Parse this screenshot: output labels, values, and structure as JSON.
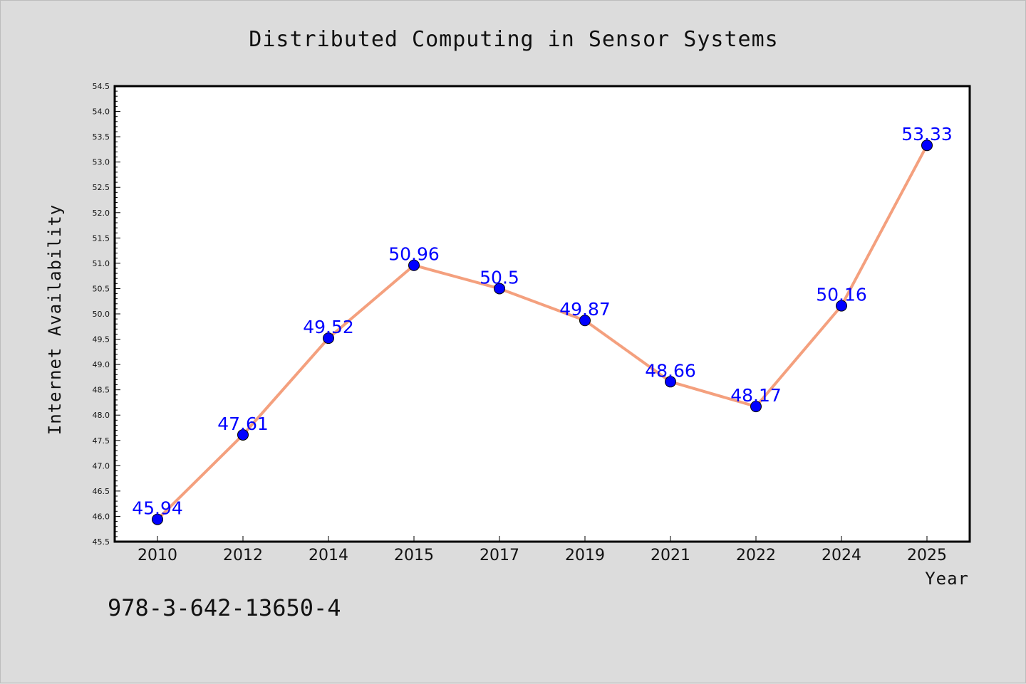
{
  "chart_data": {
    "type": "line",
    "title": "Distributed Computing in Sensor Systems",
    "xlabel": "Year",
    "ylabel": "Internet Availability",
    "categories": [
      "2010",
      "2012",
      "2014",
      "2015",
      "2017",
      "2019",
      "2021",
      "2022",
      "2024",
      "2025"
    ],
    "series": [
      {
        "values": [
          45.94,
          47.61,
          49.52,
          50.96,
          50.5,
          49.87,
          48.66,
          48.17,
          50.16,
          53.33
        ],
        "data_labels": [
          "45.94",
          "47.61",
          "49.52",
          "50.96",
          "50.5",
          "49.87",
          "48.66",
          "48.17",
          "50.16",
          "53.33"
        ],
        "line_color": "#f4a07e",
        "marker_color": "#0000ff"
      }
    ],
    "ylim": [
      45.5,
      54.5
    ],
    "yticks": [
      "45.5",
      "46.0",
      "46.5",
      "47.0",
      "47.5",
      "48.0",
      "48.5",
      "49.0",
      "49.5",
      "50.0",
      "50.5",
      "51.0",
      "51.5",
      "52.0",
      "52.5",
      "53.0",
      "53.5",
      "54.0",
      "54.5"
    ],
    "grid": false,
    "legend": false
  },
  "footer": {
    "text": "978-3-642-13650-4"
  },
  "colors": {
    "background": "#dcdcdc",
    "plot_background": "#ffffff",
    "line": "#f4a07e",
    "marker": "#0000ff",
    "data_label": "#0000ff"
  }
}
